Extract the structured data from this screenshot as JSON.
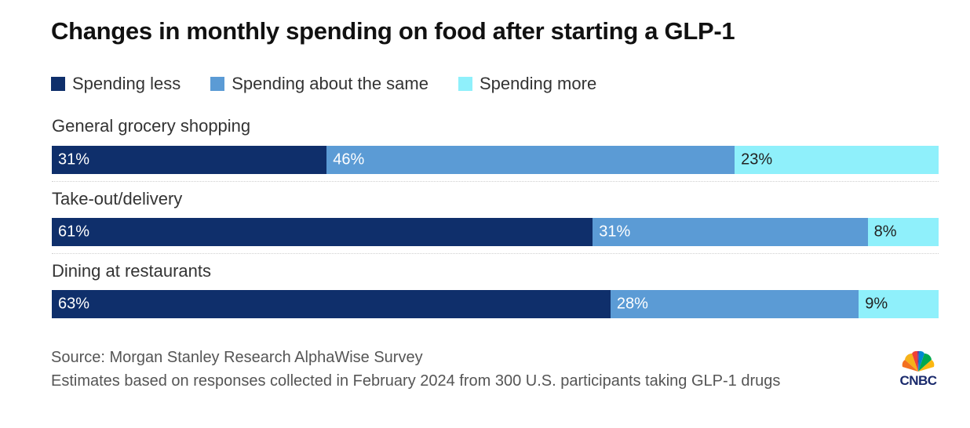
{
  "chart_data": {
    "type": "bar",
    "orientation": "horizontal-stacked",
    "title": "Changes in monthly spending on food after starting a GLP-1",
    "categories": [
      "General grocery shopping",
      "Take-out/delivery",
      "Dining at restaurants"
    ],
    "series": [
      {
        "name": "Spending less",
        "color": "#0f2f6b",
        "values": [
          31,
          61,
          63
        ],
        "labels": [
          "31%",
          "61%",
          "63%"
        ]
      },
      {
        "name": "Spending about the same",
        "color": "#5b9bd5",
        "values": [
          46,
          31,
          28
        ],
        "labels": [
          "46%",
          "31%",
          "28%"
        ]
      },
      {
        "name": "Spending more",
        "color": "#8ff0fb",
        "values": [
          23,
          8,
          9
        ],
        "labels": [
          "23%",
          "8%",
          "9%"
        ]
      }
    ],
    "legend_position": "top-left",
    "xlim": [
      0,
      100
    ]
  },
  "footer": {
    "source": "Source: Morgan Stanley Research AlphaWise Survey",
    "note": "Estimates based on responses collected in February 2024 from 300 U.S. participants taking GLP-1 drugs",
    "logo_text": "CNBC"
  },
  "logo": {
    "icon": "peacock-icon",
    "colors": [
      "#f6b21a",
      "#ef4135",
      "#6e2c8f",
      "#0089d0",
      "#00a94f",
      "#fcb711"
    ]
  }
}
